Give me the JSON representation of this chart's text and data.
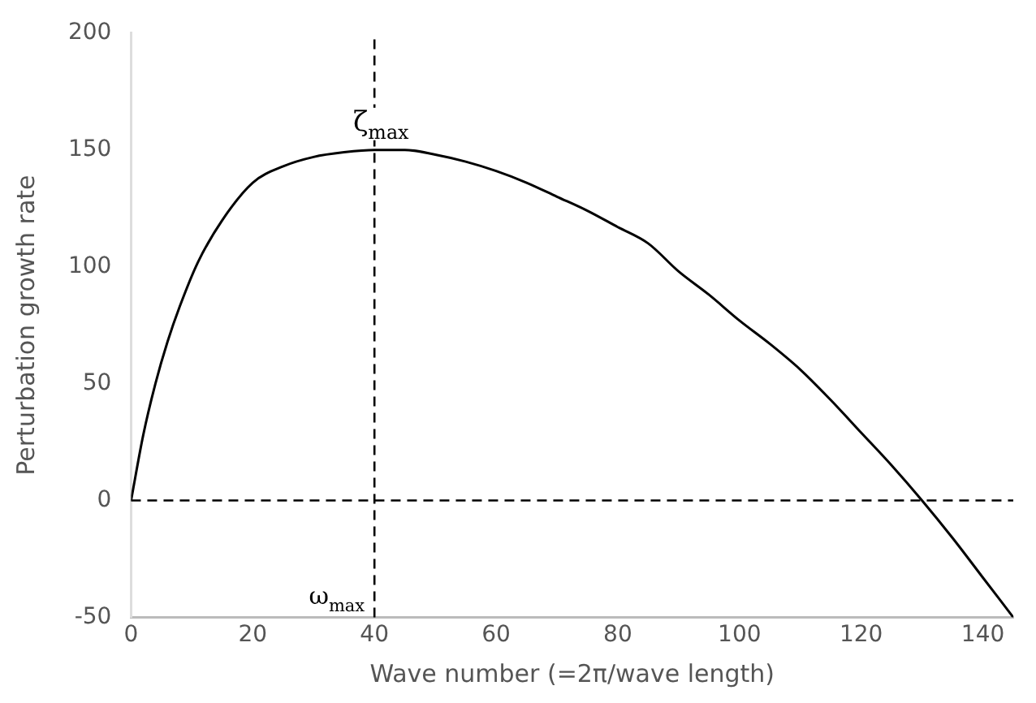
{
  "chart_data": {
    "type": "line",
    "xlabel": "Wave number (=2π/wave length)",
    "ylabel": "Perturbation growth rate",
    "series": [
      {
        "color": "#000000",
        "x": [
          0,
          2,
          4,
          6,
          8,
          11,
          15,
          20,
          25,
          30,
          35,
          40,
          45,
          50,
          55,
          60,
          65,
          70,
          75,
          80,
          85,
          90,
          95,
          100,
          105,
          110,
          115,
          120,
          125,
          130,
          135,
          140,
          145
        ],
        "values": [
          0,
          28,
          50,
          68,
          83,
          102,
          120,
          136,
          143,
          147,
          149,
          150,
          150,
          148,
          145,
          141,
          136,
          130,
          124,
          117,
          110,
          98,
          88,
          77,
          67,
          56,
          43,
          29,
          15,
          0,
          -16,
          -33,
          -50
        ]
      }
    ],
    "xlim": [
      0,
      145
    ],
    "xticks": [
      0,
      20,
      40,
      60,
      80,
      100,
      120,
      140
    ],
    "ylim": [
      -50,
      200
    ],
    "yticks": [
      -50,
      0,
      50,
      100,
      150,
      200
    ],
    "grid": false,
    "legend": false,
    "marker": "none",
    "line_style": "solid",
    "ref_lines": [
      {
        "axis": "y",
        "value": 0,
        "line_style": "dashed",
        "color": "#000000"
      },
      {
        "axis": "x",
        "value": 40,
        "label": "ω$_{max}$",
        "line_style": "dashed",
        "color": "#000000"
      }
    ],
    "annotations": [
      {
        "text": "ζ$_{max}$",
        "x": 40,
        "y": 150
      }
    ]
  }
}
